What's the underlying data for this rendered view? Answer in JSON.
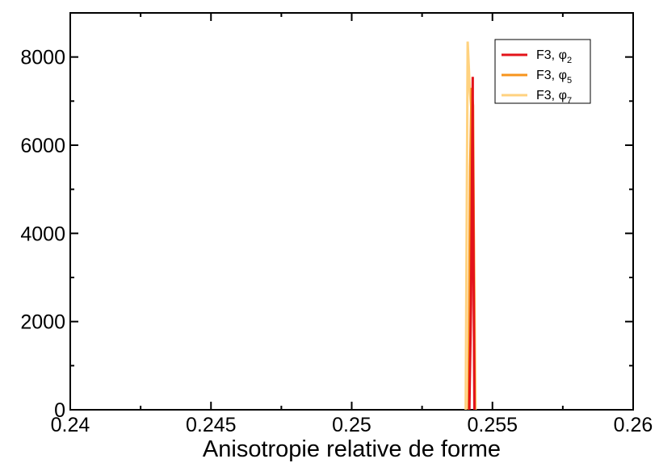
{
  "chart_data": {
    "type": "line",
    "title": "",
    "xlabel": "Anisotropie relative de forme",
    "ylabel": "",
    "xlim": [
      0.24,
      0.26
    ],
    "ylim": [
      0,
      9000
    ],
    "x_ticks": [
      0.24,
      0.245,
      0.25,
      0.255,
      0.26
    ],
    "x_tick_labels": [
      "0.24",
      "0.245",
      "0.25",
      "0.255",
      "0.26"
    ],
    "y_ticks": [
      0,
      2000,
      4000,
      6000,
      8000
    ],
    "y_tick_labels": [
      "0",
      "2000",
      "4000",
      "6000",
      "8000"
    ],
    "grid": false,
    "legend_position": "top-right",
    "series": [
      {
        "name": "F3, φ2",
        "label_main": "F3, φ",
        "label_sub": "2",
        "color": "#e3131a",
        "points": [
          [
            0.25418,
            0
          ],
          [
            0.25424,
            2400
          ],
          [
            0.2543,
            7550
          ],
          [
            0.2543,
            6450
          ],
          [
            0.25436,
            0
          ]
        ]
      },
      {
        "name": "F3, φ5",
        "label_main": "F3, φ",
        "label_sub": "5",
        "color": "#f7941d",
        "points": [
          [
            0.25415,
            0
          ],
          [
            0.25421,
            5500
          ],
          [
            0.25426,
            7300
          ],
          [
            0.25431,
            6900
          ],
          [
            0.25437,
            0
          ]
        ]
      },
      {
        "name": "F3, φ7",
        "label_main": "F3, φ",
        "label_sub": "7",
        "color": "#ffd27f",
        "points": [
          [
            0.25405,
            0
          ],
          [
            0.25412,
            8350
          ],
          [
            0.2542,
            7200
          ],
          [
            0.2543,
            6500
          ],
          [
            0.2544,
            0
          ]
        ]
      }
    ]
  }
}
